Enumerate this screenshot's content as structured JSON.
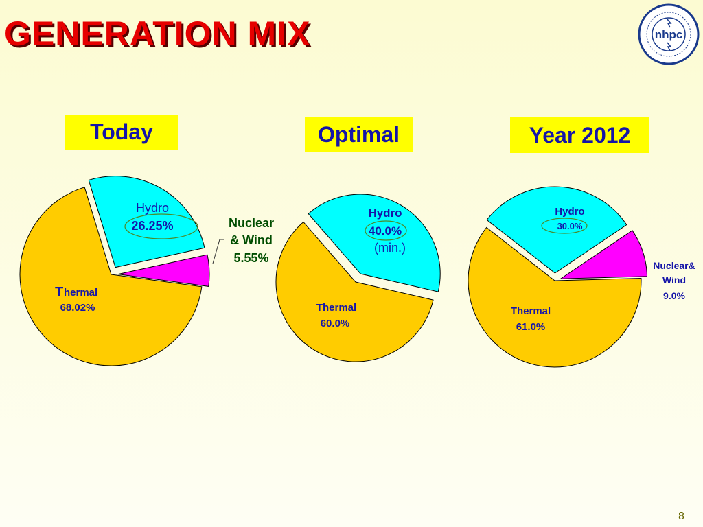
{
  "title": "GENERATION MIX",
  "logo": {
    "text": "nhpc",
    "icon": "nhpc-logo"
  },
  "page_number": "8",
  "colors": {
    "hydro": "#00ffff",
    "thermal": "#ffcc00",
    "nuclear_wind": "#ff00ff",
    "label_blue": "#1515a8",
    "label_green": "#004d00"
  },
  "chart_data": [
    {
      "type": "pie",
      "title": "Today",
      "slices": [
        {
          "name": "Hydro",
          "value": 26.25,
          "label": "Hydro",
          "value_label": "26.25%",
          "color": "#00ffff"
        },
        {
          "name": "Nuclear & Wind",
          "value": 5.55,
          "label": "Nuclear & Wind",
          "value_label": "5.55%",
          "color": "#ff00ff"
        },
        {
          "name": "Thermal",
          "value": 68.02,
          "label": "Thermal",
          "value_label": "68.02%",
          "color": "#ffcc00"
        }
      ]
    },
    {
      "type": "pie",
      "title": "Optimal",
      "slices": [
        {
          "name": "Hydro",
          "value": 40.0,
          "label": "Hydro",
          "value_label": "40.0%",
          "note": "(min.)",
          "color": "#00ffff"
        },
        {
          "name": "Thermal",
          "value": 60.0,
          "label": "Thermal",
          "value_label": "60.0%",
          "color": "#ffcc00"
        }
      ]
    },
    {
      "type": "pie",
      "title": "Year 2012",
      "slices": [
        {
          "name": "Hydro",
          "value": 30.0,
          "label": "Hydro",
          "value_label": "30.0%",
          "color": "#00ffff"
        },
        {
          "name": "Nuclear& Wind",
          "value": 9.0,
          "label": "Nuclear& Wind",
          "value_label": "9.0%",
          "color": "#ff00ff"
        },
        {
          "name": "Thermal",
          "value": 61.0,
          "label": "Thermal",
          "value_label": "61.0%",
          "color": "#ffcc00"
        }
      ]
    }
  ],
  "labels": {
    "today_hydro": "Hydro",
    "today_hydro_val": "26.25%",
    "today_nw_1": "Nuclear",
    "today_nw_2": "& Wind",
    "today_nw_val": "5.55%",
    "today_thermal_T": "T",
    "today_thermal_rest": "hermal",
    "today_thermal_val": "68.02%",
    "opt_hydro": "Hydro",
    "opt_hydro_val": "40.0%",
    "opt_hydro_note": "(min.)",
    "opt_thermal": "Thermal",
    "opt_thermal_val": "60.0%",
    "y12_hydro": "Hydro",
    "y12_hydro_val": "30.0%",
    "y12_nw_1": "Nuclear&",
    "y12_nw_2": "Wind",
    "y12_nw_val": "9.0%",
    "y12_thermal": "Thermal",
    "y12_thermal_val": "61.0%"
  }
}
